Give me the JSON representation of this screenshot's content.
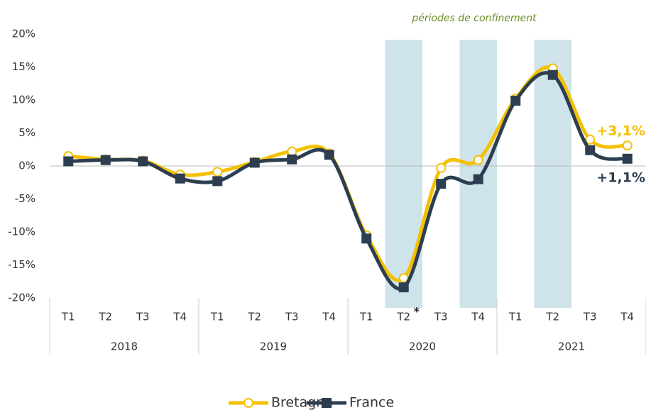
{
  "chart_data": {
    "type": "line",
    "annotation": "périodes de confinement",
    "footnote_mark": "*",
    "footnote_category": 9,
    "categories": [
      "T1",
      "T2",
      "T3",
      "T4",
      "T1",
      "T2",
      "T3",
      "T4",
      "T1",
      "T2",
      "T3",
      "T4",
      "T1",
      "T2",
      "T3",
      "T4"
    ],
    "groups": [
      {
        "name": "2018",
        "size": 4
      },
      {
        "name": "2019",
        "size": 4
      },
      {
        "name": "2020",
        "size": 4
      },
      {
        "name": "2021",
        "size": 4
      }
    ],
    "highlight_categories": [
      9,
      11,
      13
    ],
    "highlight_color": "#cfe4ea",
    "series": [
      {
        "name": "Bretagne",
        "color": "#f5c000",
        "marker": "circle",
        "values": [
          1.5,
          1.0,
          0.8,
          -1.3,
          -0.9,
          0.6,
          2.2,
          1.9,
          -10.5,
          -17.0,
          -0.3,
          0.9,
          10.2,
          14.8,
          4.0,
          3.1
        ],
        "value_labels": [
          null,
          null,
          null,
          null,
          null,
          null,
          null,
          null,
          null,
          null,
          null,
          null,
          null,
          null,
          null,
          "+3,1%"
        ]
      },
      {
        "name": "France",
        "color": "#2c3e50",
        "marker": "square",
        "values": [
          0.7,
          0.9,
          0.7,
          -1.9,
          -2.3,
          0.5,
          1.0,
          1.7,
          -11.0,
          -18.4,
          -2.7,
          -2.0,
          9.9,
          13.8,
          2.4,
          1.1
        ],
        "value_labels": [
          null,
          null,
          null,
          null,
          null,
          null,
          null,
          null,
          null,
          null,
          null,
          null,
          null,
          null,
          null,
          "+1,1%"
        ]
      }
    ],
    "ylim": [
      -20,
      20
    ],
    "yticks": [
      {
        "value": -20,
        "label": "-20%"
      },
      {
        "value": -15,
        "label": "-15%"
      },
      {
        "value": -10,
        "label": "-10%"
      },
      {
        "value": -5,
        "label": "-5%"
      },
      {
        "value": 0,
        "label": "0%"
      },
      {
        "value": 5,
        "label": "5%"
      },
      {
        "value": 10,
        "label": "10%"
      },
      {
        "value": 15,
        "label": "15%"
      },
      {
        "value": 20,
        "label": "20%"
      }
    ],
    "legend": "bottom"
  }
}
